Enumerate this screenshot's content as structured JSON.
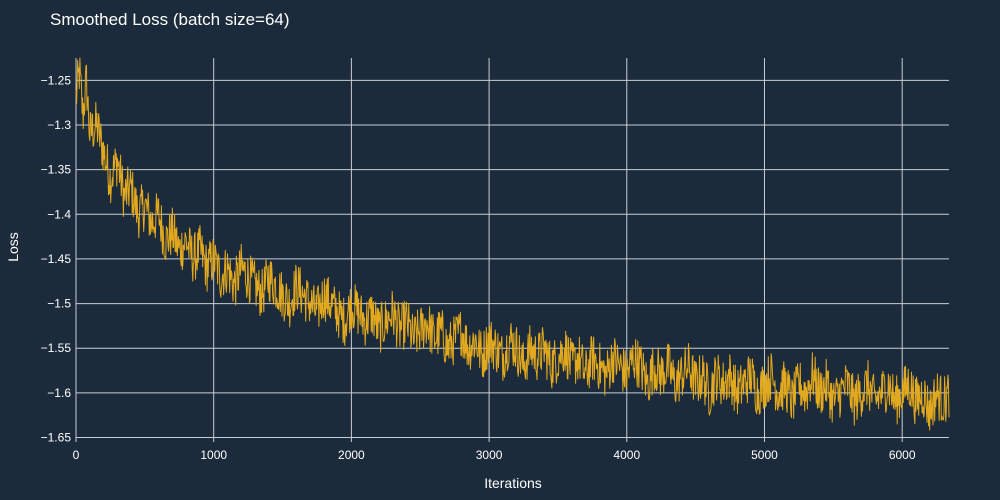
{
  "chart_data": {
    "type": "line",
    "title": "Smoothed Loss (batch size=64)",
    "xlabel": "Iterations",
    "ylabel": "Loss",
    "xlim": [
      0,
      6340
    ],
    "ylim": [
      -1.655,
      -1.225
    ],
    "x_ticks": [
      {
        "value": 0,
        "label": "0"
      },
      {
        "value": 1000,
        "label": "1000"
      },
      {
        "value": 2000,
        "label": "2000"
      },
      {
        "value": 3000,
        "label": "3000"
      },
      {
        "value": 4000,
        "label": "4000"
      },
      {
        "value": 5000,
        "label": "5000"
      },
      {
        "value": 6000,
        "label": "6000"
      }
    ],
    "y_ticks": [
      {
        "value": -1.25,
        "label": "−1.25"
      },
      {
        "value": -1.3,
        "label": "−1.3"
      },
      {
        "value": -1.35,
        "label": "−1.35"
      },
      {
        "value": -1.4,
        "label": "−1.4"
      },
      {
        "value": -1.45,
        "label": "−1.45"
      },
      {
        "value": -1.5,
        "label": "−1.5"
      },
      {
        "value": -1.55,
        "label": "−1.55"
      },
      {
        "value": -1.6,
        "label": "−1.6"
      },
      {
        "value": -1.65,
        "label": "−1.65"
      }
    ],
    "grid": true,
    "legend": "none",
    "series": [
      {
        "color": "#e2a91e",
        "x": [
          0,
          25,
          50,
          75,
          100,
          150,
          200,
          250,
          300,
          350,
          400,
          450,
          500,
          550,
          600,
          650,
          700,
          750,
          800,
          850,
          900,
          950,
          1000,
          1050,
          1100,
          1150,
          1200,
          1250,
          1300,
          1350,
          1400,
          1450,
          1500,
          1550,
          1600,
          1650,
          1700,
          1750,
          1800,
          1850,
          1900,
          1950,
          2000,
          2050,
          2100,
          2150,
          2200,
          2250,
          2300,
          2350,
          2400,
          2450,
          2500,
          2550,
          2600,
          2650,
          2700,
          2750,
          2800,
          2850,
          2900,
          2950,
          3000,
          3050,
          3100,
          3150,
          3200,
          3250,
          3300,
          3350,
          3400,
          3450,
          3500,
          3550,
          3600,
          3650,
          3700,
          3750,
          3800,
          3850,
          3900,
          3950,
          4000,
          4050,
          4100,
          4150,
          4200,
          4250,
          4300,
          4350,
          4400,
          4450,
          4500,
          4550,
          4600,
          4650,
          4700,
          4750,
          4800,
          4850,
          4900,
          4950,
          5000,
          5050,
          5100,
          5150,
          5200,
          5250,
          5300,
          5350,
          5400,
          5450,
          5500,
          5550,
          5600,
          5650,
          5700,
          5750,
          5800,
          5850,
          5900,
          5950,
          6000,
          6050,
          6100,
          6150,
          6200,
          6250,
          6300,
          6340
        ],
        "y": [
          -1.27,
          -1.24,
          -1.29,
          -1.25,
          -1.31,
          -1.3,
          -1.33,
          -1.36,
          -1.34,
          -1.38,
          -1.37,
          -1.4,
          -1.39,
          -1.41,
          -1.4,
          -1.43,
          -1.42,
          -1.44,
          -1.43,
          -1.45,
          -1.44,
          -1.46,
          -1.45,
          -1.47,
          -1.46,
          -1.48,
          -1.46,
          -1.47,
          -1.48,
          -1.49,
          -1.47,
          -1.48,
          -1.49,
          -1.5,
          -1.48,
          -1.49,
          -1.5,
          -1.51,
          -1.49,
          -1.5,
          -1.51,
          -1.52,
          -1.5,
          -1.51,
          -1.52,
          -1.51,
          -1.53,
          -1.52,
          -1.51,
          -1.53,
          -1.52,
          -1.54,
          -1.53,
          -1.52,
          -1.54,
          -1.53,
          -1.55,
          -1.54,
          -1.53,
          -1.55,
          -1.54,
          -1.56,
          -1.54,
          -1.55,
          -1.56,
          -1.54,
          -1.55,
          -1.57,
          -1.55,
          -1.56,
          -1.55,
          -1.57,
          -1.56,
          -1.55,
          -1.57,
          -1.56,
          -1.58,
          -1.56,
          -1.57,
          -1.58,
          -1.56,
          -1.57,
          -1.58,
          -1.56,
          -1.57,
          -1.59,
          -1.57,
          -1.58,
          -1.57,
          -1.59,
          -1.58,
          -1.57,
          -1.59,
          -1.58,
          -1.6,
          -1.58,
          -1.59,
          -1.58,
          -1.6,
          -1.59,
          -1.58,
          -1.6,
          -1.59,
          -1.58,
          -1.6,
          -1.59,
          -1.61,
          -1.59,
          -1.6,
          -1.58,
          -1.6,
          -1.59,
          -1.61,
          -1.6,
          -1.59,
          -1.61,
          -1.6,
          -1.59,
          -1.61,
          -1.6,
          -1.59,
          -1.61,
          -1.6,
          -1.59,
          -1.61,
          -1.6,
          -1.62,
          -1.6,
          -1.61,
          -1.6
        ]
      }
    ]
  }
}
